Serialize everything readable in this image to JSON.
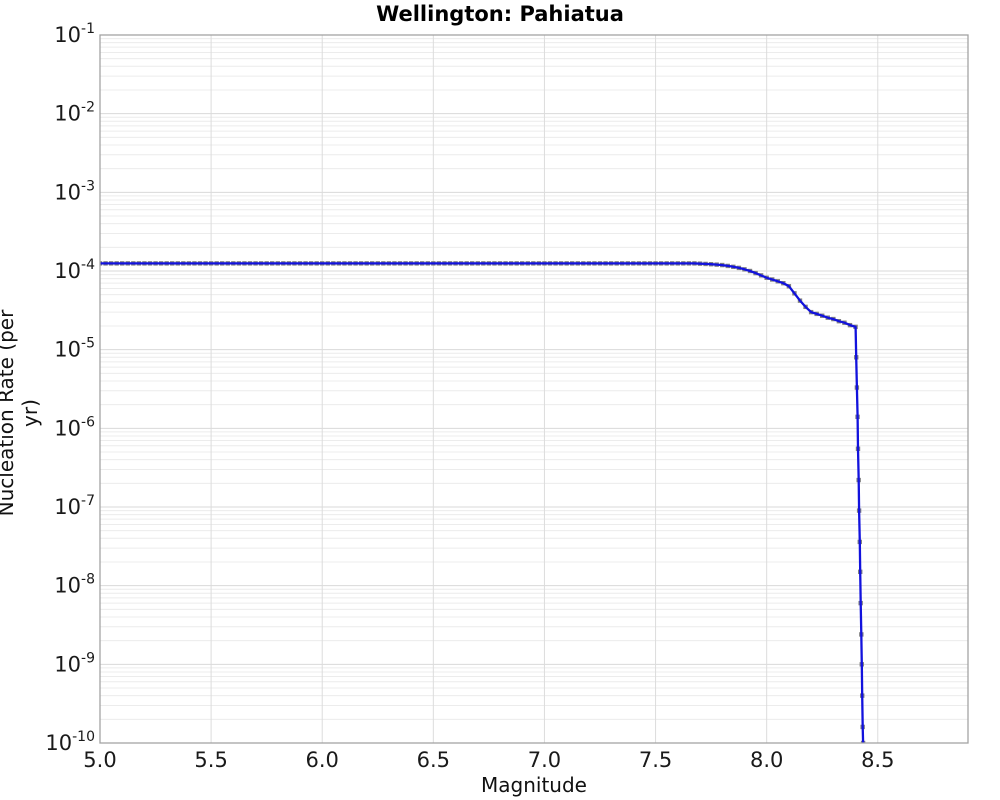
{
  "page": {
    "title": "Wellington: Pahiatua",
    "xlabel": "Magnitude",
    "ylabel": "Nucleation Rate (per yr)"
  },
  "chart_data": {
    "type": "line",
    "title": "Wellington: Pahiatua",
    "xlabel": "Magnitude",
    "ylabel": "Nucleation Rate (per yr)",
    "x_scale": "linear",
    "y_scale": "log",
    "xlim": [
      5.0,
      8.906
    ],
    "ylim_exponents": [
      -1,
      -10
    ],
    "x_tick_labels": [
      "5.0",
      "5.5",
      "6.0",
      "6.5",
      "7.0",
      "7.5",
      "8.0",
      "8.5"
    ],
    "x_ticks": [
      5.0,
      5.5,
      6.0,
      6.5,
      7.0,
      7.5,
      8.0,
      8.5
    ],
    "y_tick_base": "10",
    "y_tick_exponents": [
      -1,
      -2,
      -3,
      -4,
      -5,
      -6,
      -7,
      -8,
      -9,
      -10
    ],
    "grid": true,
    "legend": "none",
    "colors": {
      "line": "#1212dd",
      "marker": "#7f7f7f",
      "border": "#a3a3a3",
      "grid_minor": "#ececec",
      "grid_decade": "#d9d9d9",
      "grid_vertical": "#dcdcdc",
      "text": "#1a1a1a"
    },
    "series": [
      {
        "name": "nucleation-rate-mfd",
        "marker": "square",
        "flat_segment": {
          "mag_start": 5.0,
          "mag_end": 7.675,
          "mag_step": 0.025,
          "rate": 0.000125
        },
        "points": [
          [
            7.7,
            0.000124
          ],
          [
            7.725,
            0.000123
          ],
          [
            7.75,
            0.000122
          ],
          [
            7.775,
            0.0001205
          ],
          [
            7.8,
            0.000119
          ],
          [
            7.825,
            0.000116
          ],
          [
            7.85,
            0.000113
          ],
          [
            7.875,
            0.0001095
          ],
          [
            7.9,
            0.000105
          ],
          [
            7.925,
            0.0001
          ],
          [
            7.95,
            9.4e-05
          ],
          [
            7.975,
            8.8e-05
          ],
          [
            8.0,
            8.2e-05
          ],
          [
            8.025,
            7.8e-05
          ],
          [
            8.05,
            7.4e-05
          ],
          [
            8.075,
            7e-05
          ],
          [
            8.1,
            6.4e-05
          ],
          [
            8.125,
            5.2e-05
          ],
          [
            8.15,
            4.2e-05
          ],
          [
            8.175,
            3.5e-05
          ],
          [
            8.2,
            3e-05
          ],
          [
            8.225,
            2.85e-05
          ],
          [
            8.25,
            2.7e-05
          ],
          [
            8.275,
            2.55e-05
          ],
          [
            8.3,
            2.45e-05
          ],
          [
            8.325,
            2.3e-05
          ],
          [
            8.35,
            2.2e-05
          ],
          [
            8.375,
            2.05e-05
          ],
          [
            8.4,
            1.95e-05
          ],
          [
            8.403,
            8e-06
          ],
          [
            8.406,
            3.3e-06
          ],
          [
            8.409,
            1.4e-06
          ],
          [
            8.411,
            5.5e-07
          ],
          [
            8.414,
            2.2e-07
          ],
          [
            8.416,
            9e-08
          ],
          [
            8.419,
            3.6e-08
          ],
          [
            8.421,
            1.5e-08
          ],
          [
            8.423,
            6e-09
          ],
          [
            8.426,
            2.4e-09
          ],
          [
            8.428,
            1e-09
          ],
          [
            8.43,
            4e-10
          ],
          [
            8.432,
            1.6e-10
          ],
          [
            8.434,
            1e-10
          ],
          [
            8.435,
            6e-11
          ]
        ]
      }
    ]
  }
}
